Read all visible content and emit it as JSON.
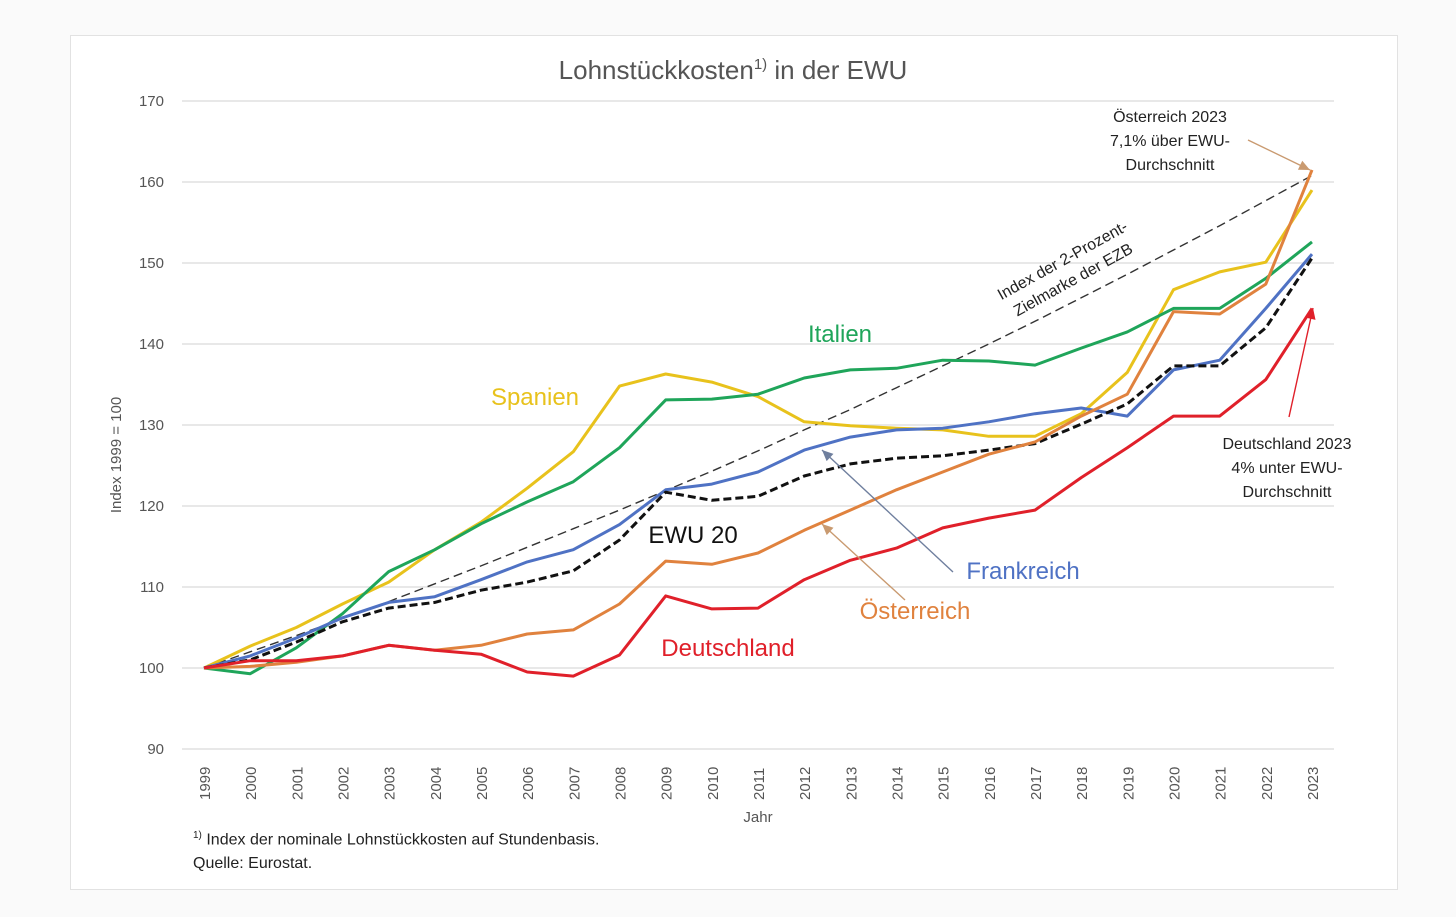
{
  "chart_data": {
    "type": "line",
    "title": "Lohnstückkosten",
    "title_sup": "1)",
    "title_suffix": " in der EWU",
    "xlabel": "Jahr",
    "ylabel": "Index 1999 = 100",
    "ylim": [
      90,
      170
    ],
    "yticks": [
      90,
      100,
      110,
      120,
      130,
      140,
      150,
      160,
      170
    ],
    "grid": true,
    "x": [
      1999,
      2000,
      2001,
      2002,
      2003,
      2004,
      2005,
      2006,
      2007,
      2008,
      2009,
      2010,
      2011,
      2012,
      2013,
      2014,
      2015,
      2016,
      2017,
      2018,
      2019,
      2020,
      2021,
      2022,
      2023
    ],
    "series": [
      {
        "name": "Index der 2-Prozent-Zielmarke der EZB",
        "label_lines": [
          "Index der 2-Prozent-",
          "Zielmarke der EZB"
        ],
        "color": "#333333",
        "style": "dashed-thin",
        "values": [
          100,
          102,
          104,
          106.1,
          108.2,
          110.4,
          112.6,
          114.9,
          117.2,
          119.5,
          121.9,
          124.3,
          126.8,
          129.4,
          131.9,
          134.6,
          137.3,
          140,
          142.8,
          145.7,
          148.6,
          151.6,
          154.6,
          157.7,
          160.8
        ]
      },
      {
        "name": "Spanien",
        "color": "#e8c21c",
        "values": [
          100,
          102.7,
          105,
          107.9,
          110.6,
          114.6,
          118,
          122.2,
          126.7,
          134.8,
          136.3,
          135.3,
          133.5,
          130.4,
          129.9,
          129.6,
          129.4,
          128.6,
          128.6,
          131.4,
          136.5,
          146.7,
          148.9,
          150.1,
          159
        ]
      },
      {
        "name": "Italien",
        "color": "#1fa55a",
        "values": [
          100,
          99.3,
          102.5,
          106.7,
          111.9,
          114.6,
          117.8,
          120.5,
          123,
          127.2,
          133.1,
          133.2,
          133.8,
          135.8,
          136.8,
          137,
          138,
          137.9,
          137.4,
          139.5,
          141.5,
          144.4,
          144.4,
          148.1,
          152.6
        ]
      },
      {
        "name": "Frankreich",
        "color": "#4f72c4",
        "values": [
          100,
          101.5,
          103.7,
          106.2,
          108.1,
          108.8,
          110.9,
          113.1,
          114.6,
          117.7,
          122,
          122.7,
          124.2,
          126.9,
          128.5,
          129.4,
          129.6,
          130.4,
          131.4,
          132.1,
          131.1,
          136.8,
          138,
          144.4,
          151.1
        ]
      },
      {
        "name": "EWU 20",
        "color": "#111111",
        "style": "dashed-thick",
        "values": [
          100,
          101,
          103.2,
          105.7,
          107.4,
          108.1,
          109.6,
          110.6,
          112,
          115.8,
          121.7,
          120.7,
          121.2,
          123.7,
          125.2,
          125.9,
          126.2,
          126.9,
          127.7,
          130.1,
          132.6,
          137.3,
          137.3,
          142,
          150.6
        ]
      },
      {
        "name": "Österreich",
        "color": "#e0823e",
        "values": [
          100,
          100.2,
          100.7,
          101.5,
          102.8,
          102.2,
          102.8,
          104.2,
          104.7,
          107.9,
          113.2,
          112.8,
          114.2,
          117,
          119.5,
          122,
          124.2,
          126.4,
          127.9,
          131.1,
          133.8,
          144,
          143.7,
          147.4,
          161.5
        ]
      },
      {
        "name": "Deutschland",
        "color": "#e0202a",
        "values": [
          100,
          100.9,
          100.9,
          101.5,
          102.8,
          102.2,
          101.7,
          99.5,
          99,
          101.6,
          108.9,
          107.3,
          107.4,
          110.9,
          113.3,
          114.8,
          117.3,
          118.5,
          119.5,
          123.5,
          127.2,
          131.1,
          131.1,
          135.6,
          144.4
        ]
      }
    ],
    "annotations": [
      {
        "id": "at",
        "lines": [
          "Österreich 2023",
          "7,1% über EWU-",
          "Durchschnitt"
        ],
        "color": "#e0823e"
      },
      {
        "id": "de",
        "lines": [
          "Deutschland 2023",
          "4% unter EWU-",
          "Durchschnitt"
        ],
        "color": "#e0202a"
      }
    ]
  },
  "footnotes": {
    "note_sup": "1)",
    "note": " Index der nominale Lohnstückkosten auf Stundenbasis.",
    "source": "Quelle: Eurostat."
  }
}
